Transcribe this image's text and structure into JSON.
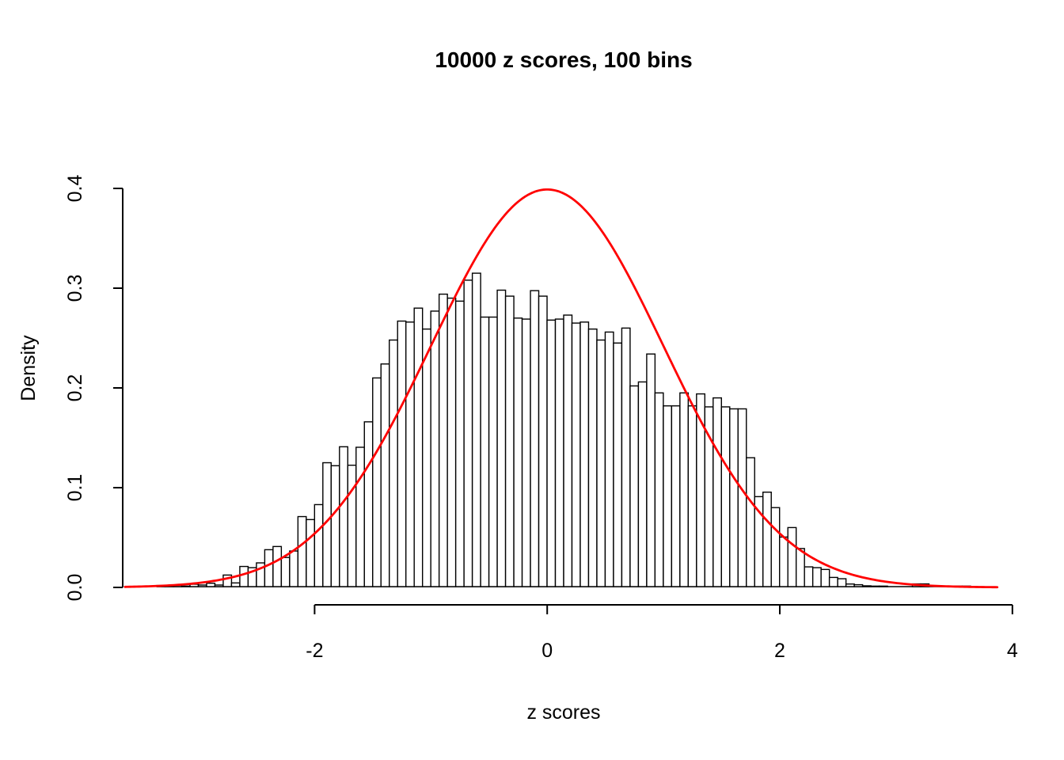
{
  "page": {
    "background_color": "#FFFFFF",
    "text_color": "#000000"
  },
  "chart_data": {
    "type": "histogram",
    "title": "10000 z scores, 100 bins",
    "xlabel": "z scores",
    "ylabel": "Density",
    "x_tick_labels": [
      "-2",
      "0",
      "2",
      "4"
    ],
    "x_tick_values": [
      -2,
      0,
      2,
      4
    ],
    "y_tick_labels": [
      "0.0",
      "0.1",
      "0.2",
      "0.3",
      "0.4"
    ],
    "y_tick_values": [
      0,
      0.1,
      0.2,
      0.3,
      0.4
    ],
    "xlim": [
      -3.65,
      3.94
    ],
    "ylim": [
      0,
      0.4
    ],
    "grid": false,
    "legend": "none",
    "axis_color": "#000000",
    "bar_fill": "#FFFFFF",
    "bar_stroke": "#000000",
    "curve": {
      "name": "standard-normal-density",
      "mean": 0,
      "sd": 1,
      "peak_density": 0.3989,
      "color": "#FF0000",
      "x_start": -3.63,
      "x_end": 3.88
    },
    "bins": {
      "count": 100,
      "start": -3.357,
      "width": 0.0714,
      "densities": [
        0.0019,
        0.0019,
        0.0021,
        0.0013,
        0.0032,
        0.0024,
        0.0042,
        0.0024,
        0.0124,
        0.0045,
        0.021,
        0.0198,
        0.0246,
        0.0378,
        0.041,
        0.03,
        0.0365,
        0.071,
        0.068,
        0.083,
        0.125,
        0.122,
        0.141,
        0.1225,
        0.1405,
        0.166,
        0.21,
        0.224,
        0.248,
        0.267,
        0.266,
        0.28,
        0.259,
        0.277,
        0.294,
        0.29,
        0.287,
        0.308,
        0.315,
        0.271,
        0.271,
        0.298,
        0.292,
        0.27,
        0.269,
        0.2975,
        0.292,
        0.268,
        0.269,
        0.273,
        0.265,
        0.266,
        0.259,
        0.248,
        0.256,
        0.245,
        0.26,
        0.202,
        0.206,
        0.234,
        0.195,
        0.182,
        0.182,
        0.195,
        0.182,
        0.194,
        0.181,
        0.19,
        0.181,
        0.179,
        0.179,
        0.13,
        0.091,
        0.0955,
        0.08,
        0.0505,
        0.06,
        0.039,
        0.0206,
        0.0198,
        0.018,
        0.01,
        0.0087,
        0.0034,
        0.0027,
        0.0016,
        0.0013,
        0.0013,
        0.0,
        0.0,
        0.0,
        0.0035,
        0.0035,
        0.0,
        0.0,
        0.0,
        0.0013,
        0.0013,
        0.0,
        0.0
      ]
    }
  }
}
